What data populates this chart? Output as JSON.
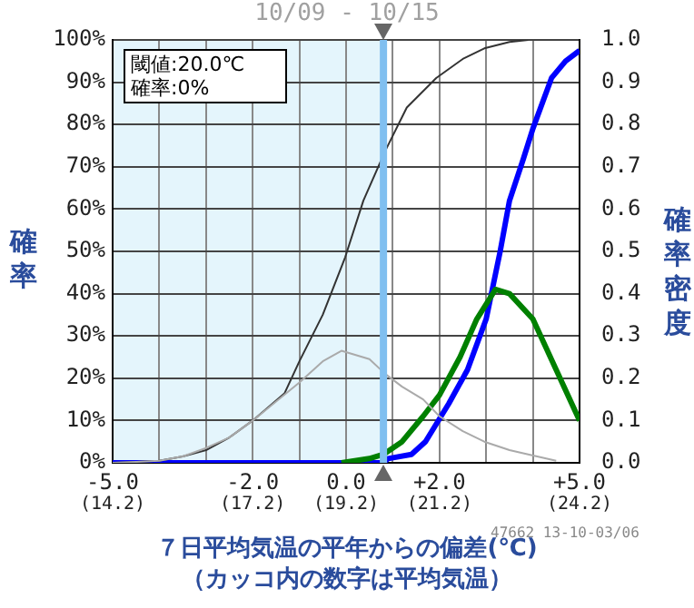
{
  "chart_data": {
    "type": "line",
    "title": "10/09 - 10/15",
    "xlabel": "７日平均気温の平年からの偏差(℃)\n（カッコ内の数字は平均気温）",
    "ylabel": "確率",
    "y2label": "確率密度",
    "xlim": [
      -5,
      5
    ],
    "xticks": [
      {
        "value": -5,
        "label": "-5.0"
      },
      {
        "value": -4,
        "label": null
      },
      {
        "value": -3,
        "label": null
      },
      {
        "value": -2,
        "label": "-2.0"
      },
      {
        "value": -1,
        "label": null
      },
      {
        "value": 0,
        "label": "0.0"
      },
      {
        "value": 1,
        "label": null
      },
      {
        "value": 2,
        "label": "+2.0"
      },
      {
        "value": 3,
        "label": null
      },
      {
        "value": 4,
        "label": null
      },
      {
        "value": 5,
        "label": "+5.0"
      }
    ],
    "x2lim": [
      14.2,
      24.2
    ],
    "x2ticks": [
      {
        "value": 14.2,
        "label": "(14.2)"
      },
      {
        "value": 17.2,
        "label": "(17.2)"
      },
      {
        "value": 19.2,
        "label": "(19.2)"
      },
      {
        "value": 21.2,
        "label": "(21.2)"
      },
      {
        "value": 24.2,
        "label": "(24.2)"
      }
    ],
    "ylim": [
      0,
      100
    ],
    "yticks": [
      {
        "value": 0,
        "label": "0%"
      },
      {
        "value": 10,
        "label": "10%"
      },
      {
        "value": 20,
        "label": "20%"
      },
      {
        "value": 30,
        "label": "30%"
      },
      {
        "value": 40,
        "label": "40%"
      },
      {
        "value": 50,
        "label": "50%"
      },
      {
        "value": 60,
        "label": "60%"
      },
      {
        "value": 70,
        "label": "70%"
      },
      {
        "value": 80,
        "label": "80%"
      },
      {
        "value": 90,
        "label": "90%"
      },
      {
        "value": 100,
        "label": "100%"
      }
    ],
    "y2lim": [
      0,
      1
    ],
    "y2ticks": [
      {
        "value": 0,
        "label": "0.0"
      },
      {
        "value": 0.1,
        "label": "0.1"
      },
      {
        "value": 0.2,
        "label": "0.2"
      },
      {
        "value": 0.3,
        "label": "0.3"
      },
      {
        "value": 0.4,
        "label": "0.4"
      },
      {
        "value": 0.5,
        "label": "0.5"
      },
      {
        "value": 0.6,
        "label": "0.6"
      },
      {
        "value": 0.7,
        "label": "0.7"
      },
      {
        "value": 0.8,
        "label": "0.8"
      },
      {
        "value": 0.9,
        "label": "0.9"
      },
      {
        "value": 1,
        "label": "1.0"
      }
    ],
    "grid": true,
    "legend": false,
    "marker": "none",
    "bands": [
      {
        "axis": "x",
        "from": -5,
        "to": 0.8,
        "color": "#e4f5fc"
      }
    ],
    "ref_lines": [
      {
        "axis": "x",
        "value": 0.8,
        "color": "#80bff0"
      }
    ],
    "annotations": [
      "閾値:20.0℃\n確率:0%",
      "47662 13-10-03/06"
    ],
    "series": [
      {
        "type": "line",
        "color": "#aaaaaa",
        "axis": "y2",
        "x": [
          -5,
          -4.5,
          -4,
          -3.5,
          -3,
          -2.5,
          -2,
          -1.5,
          -1,
          -0.5,
          -0.1,
          0.5,
          0.84,
          1.2,
          1.65,
          2,
          2.5,
          2.96,
          3.5,
          3.9,
          4.5
        ],
        "values": [
          0,
          0.002,
          0.005,
          0.015,
          0.035,
          0.06,
          0.1,
          0.145,
          0.19,
          0.24,
          0.265,
          0.245,
          0.21,
          0.18,
          0.15,
          0.11,
          0.075,
          0.05,
          0.03,
          0.02,
          0.005
        ]
      },
      {
        "type": "line",
        "color": "#333333",
        "axis": "y",
        "x": [
          -5,
          -4.5,
          -4,
          -3.5,
          -3,
          -2.5,
          -2,
          -1.32,
          -1,
          -0.5,
          -0.02,
          0.37,
          0.84,
          1.3,
          1.93,
          2.5,
          2.96,
          3.5,
          3.9
        ],
        "values": [
          0,
          0.2,
          0.5,
          1.5,
          3,
          6,
          10,
          16.4,
          24,
          35,
          48.6,
          62,
          73.8,
          84,
          91,
          95.5,
          98,
          99.5,
          100
        ]
      },
      {
        "type": "line",
        "color": "#008000",
        "axis": "y2",
        "x": [
          -0.1,
          0.5,
          0.8,
          1.2,
          1.65,
          2,
          2.44,
          2.8,
          3.2,
          3.5,
          4,
          4.5,
          5
        ],
        "values": [
          0,
          0.01,
          0.02,
          0.05,
          0.11,
          0.16,
          0.25,
          0.34,
          0.41,
          0.4,
          0.34,
          0.22,
          0.1
        ]
      },
      {
        "type": "line",
        "color": "#0000ff",
        "axis": "y",
        "x": [
          -5,
          0.8,
          0.9,
          1.4,
          1.7,
          2.2,
          2.6,
          3,
          3.3,
          3.5,
          3.8,
          4,
          4.4,
          4.7,
          5
        ],
        "values": [
          0,
          0,
          1,
          2,
          5,
          14,
          22,
          34,
          50,
          62,
          72,
          79,
          91,
          95,
          97.5
        ]
      }
    ]
  }
}
